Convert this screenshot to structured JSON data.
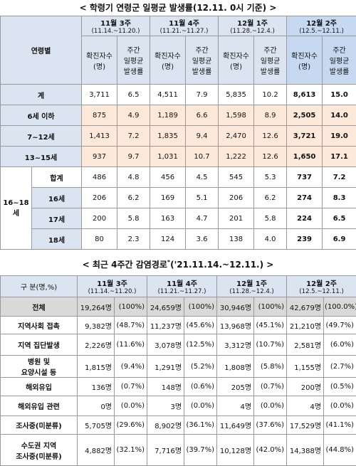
{
  "table1": {
    "title": "< 학령기 연령군 일평균 발생률(12.11. 0시 기준) >",
    "label_header": "연령별",
    "weeks": [
      {
        "week": "11월 3주",
        "range": "(11.14.~11.20.)"
      },
      {
        "week": "11월 4주",
        "range": "(11.21.~11.27.)"
      },
      {
        "week": "12월 1주",
        "range": "(11.28.~12.4.)"
      },
      {
        "week": "12월 2주",
        "range": "(12.5.~12.11.)"
      }
    ],
    "sub_headers": [
      [
        "확진자수",
        "(명)"
      ],
      [
        "주간",
        "일평균",
        "발생률"
      ]
    ],
    "rows": [
      {
        "label": "계",
        "highlight": false,
        "cells": [
          "3,711",
          "6.5",
          "4,511",
          "7.9",
          "5,835",
          "10.2",
          "8,613",
          "15.0"
        ]
      },
      {
        "label": "6세 이하",
        "highlight": true,
        "cells": [
          "875",
          "4.9",
          "1,189",
          "6.6",
          "1,598",
          "8.9",
          "2,505",
          "14.0"
        ]
      },
      {
        "label": "7~12세",
        "highlight": true,
        "cells": [
          "1,413",
          "7.2",
          "1,835",
          "9.4",
          "2,470",
          "12.6",
          "3,721",
          "19.0"
        ]
      },
      {
        "label": "13~15세",
        "highlight": true,
        "cells": [
          "937",
          "9.7",
          "1,031",
          "10.7",
          "1,222",
          "12.6",
          "1,650",
          "17.1"
        ]
      }
    ],
    "group": {
      "label": "16~18세",
      "rows": [
        {
          "label": "합계",
          "cells": [
            "486",
            "4.8",
            "456",
            "4.5",
            "545",
            "5.3",
            "737",
            "7.2"
          ]
        },
        {
          "label": "16세",
          "cells": [
            "206",
            "6.2",
            "169",
            "5.1",
            "206",
            "6.2",
            "274",
            "8.3"
          ]
        },
        {
          "label": "17세",
          "cells": [
            "200",
            "5.8",
            "163",
            "4.7",
            "201",
            "5.8",
            "224",
            "6.5"
          ]
        },
        {
          "label": "18세",
          "cells": [
            "80",
            "2.3",
            "124",
            "3.6",
            "138",
            "4.0",
            "239",
            "6.9"
          ]
        }
      ]
    }
  },
  "table2": {
    "title": {
      "text": "< 최근 4주간 감염경로",
      "mark": "*",
      "range": "('21.11.14.~12.11.) >"
    },
    "label_header": "구 분(명,%)",
    "weeks": [
      {
        "week": "11월 3주",
        "range": "(11.14.~11.20.)"
      },
      {
        "week": "11월 4주",
        "range": "(11.21.~11.27.)"
      },
      {
        "week": "12월 1주",
        "range": "(11.28.~12.4.)"
      },
      {
        "week": "12월 2주",
        "range": "(12.5.~12.11.)"
      }
    ],
    "rows": [
      {
        "label": [
          "전체"
        ],
        "shaded": true,
        "cells": [
          "19,264명",
          "(100%)",
          "24,659명",
          "(100%)",
          "30,946명",
          "(100%)",
          "42,679명",
          "(100.0%)"
        ]
      },
      {
        "label": [
          "지역사회 접촉"
        ],
        "shaded": false,
        "cells": [
          "9,382명",
          "(48.7%)",
          "11,237명",
          "(45.6%)",
          "13,968명",
          "(45.1%)",
          "21,210명",
          "(49.7%)"
        ]
      },
      {
        "label": [
          "지역 집단발생"
        ],
        "shaded": false,
        "cells": [
          "2,226명",
          "(11.6%)",
          "3,078명",
          "(12.5%)",
          "3,312명",
          "(10.7%)",
          "2,581명",
          "(6.0%)"
        ]
      },
      {
        "label": [
          "병원 및",
          "요양시설 등"
        ],
        "shaded": false,
        "cells": [
          "1,815명",
          "(9.4%)",
          "1,291명",
          "(5.2%)",
          "1,808명",
          "(5.8%)",
          "1,155명",
          "(2.7%)"
        ]
      },
      {
        "label": [
          "해외유입"
        ],
        "shaded": false,
        "cells": [
          "136명",
          "(0.7%)",
          "148명",
          "(0.6%)",
          "205명",
          "(0.7%)",
          "200명",
          "(0.5%)"
        ]
      },
      {
        "label": [
          "해외유입 관련"
        ],
        "shaded": false,
        "cells": [
          "0명",
          "(0.0%)",
          "3명",
          "(0.0%)",
          "4명",
          "(0.0%)",
          "4명",
          "(0.0%)"
        ]
      },
      {
        "label": [
          "조사중(미분류)"
        ],
        "shaded": false,
        "cells": [
          "5,705명",
          "(29.6%)",
          "8,902명",
          "(36.1%)",
          "11,649명",
          "(37.6%)",
          "17,529명",
          "(41.1%)"
        ]
      },
      {
        "label": [
          "수도권 지역",
          "조사중(미분류)"
        ],
        "shaded": false,
        "cells": [
          "4,882명",
          "(32.1%)",
          "7,716명",
          "(39.7%)",
          "10,128명",
          "(42.0%)",
          "14,388명",
          "(44.8%)"
        ]
      }
    ]
  }
}
